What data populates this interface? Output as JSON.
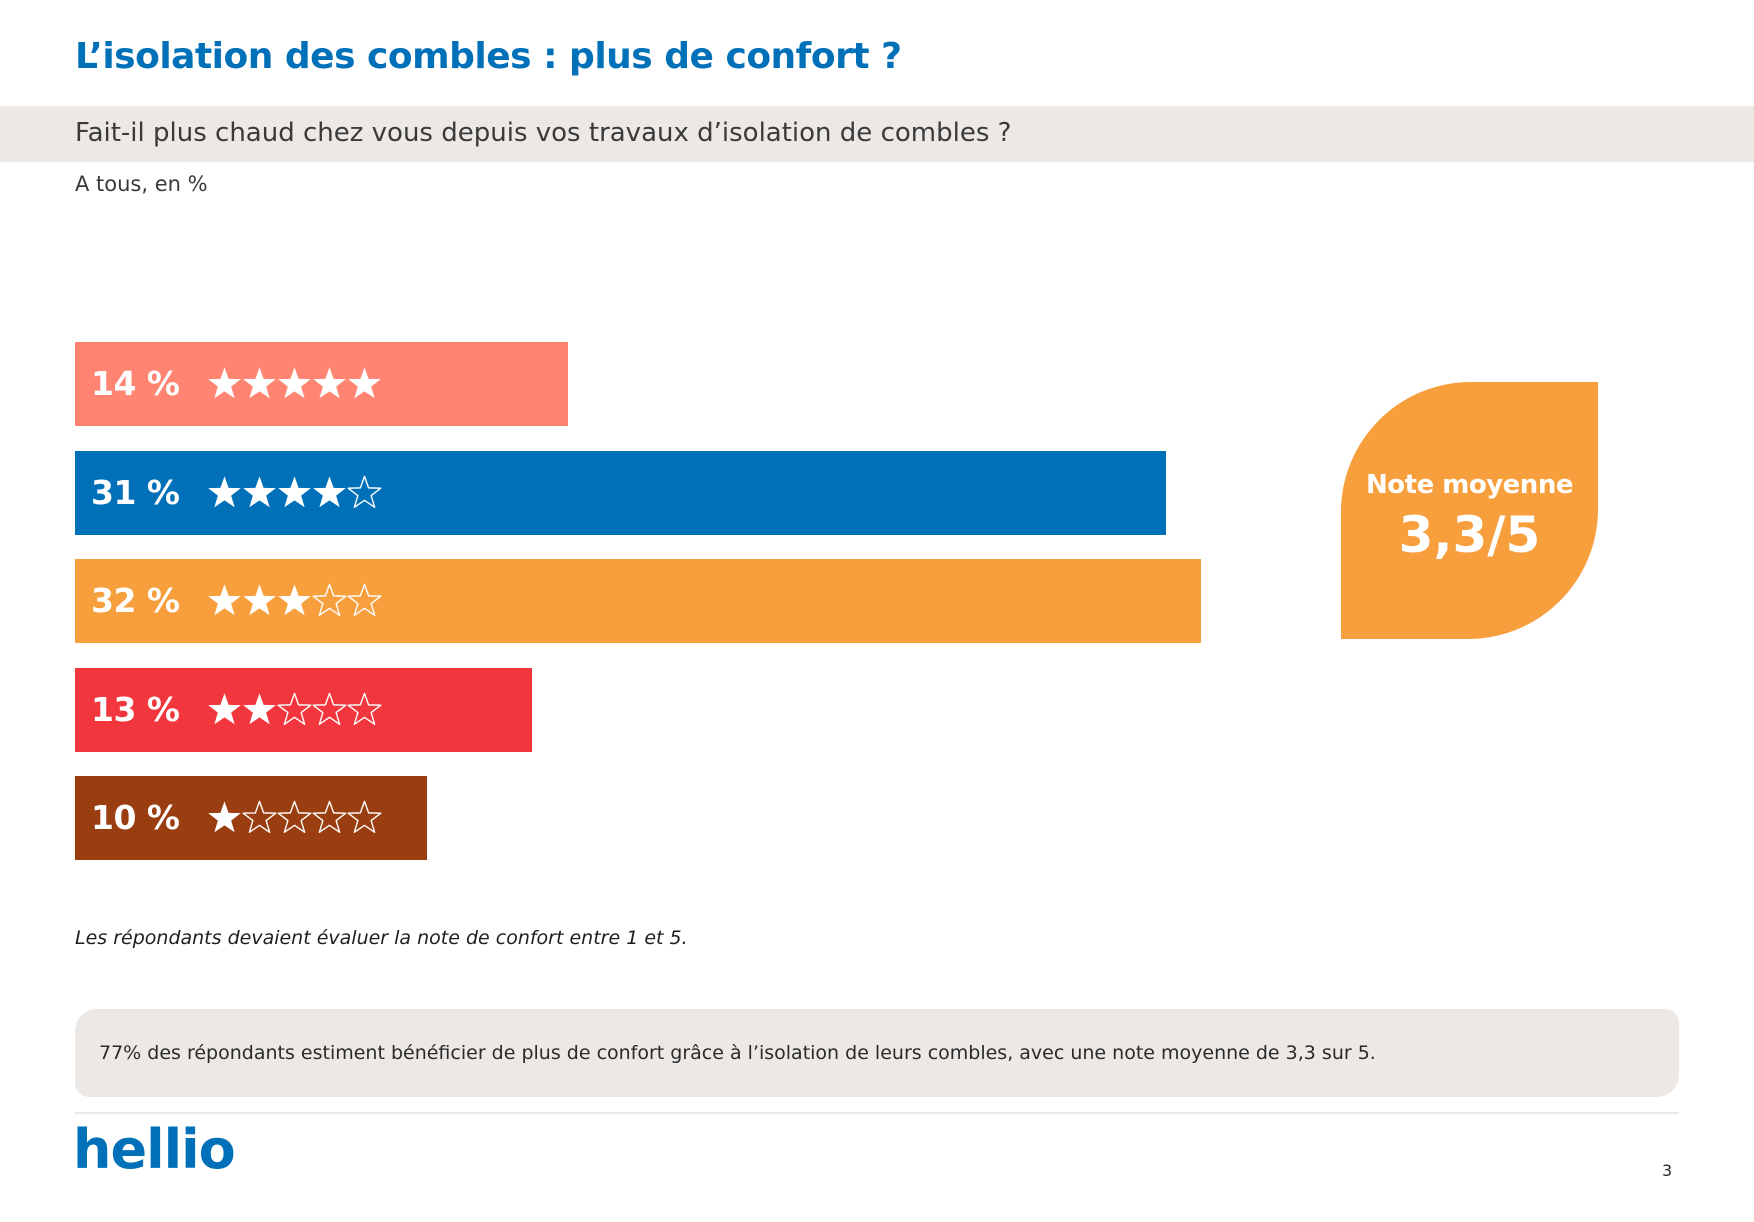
{
  "title": "L’isolation des combles : plus de confort ?",
  "question": "Fait-il plus chaud chez vous depuis vos travaux d’isolation de combles ?",
  "base": "A tous, en %",
  "chart_data": {
    "type": "bar",
    "orientation": "horizontal",
    "categories": [
      "5 étoiles",
      "4 étoiles",
      "3 étoiles",
      "2 étoiles",
      "1 étoile"
    ],
    "stars": [
      5,
      4,
      3,
      2,
      1
    ],
    "values": [
      14,
      31,
      32,
      13,
      10
    ],
    "labels": [
      "14 %",
      "31 %",
      "32 %",
      "13 %",
      "10 %"
    ],
    "colors": [
      "#ff8472",
      "#0071b8",
      "#f79f3d",
      "#f2363d",
      "#9a3d10"
    ],
    "max_stars": 5,
    "xlim": [
      0,
      32
    ]
  },
  "badge": {
    "label": "Note moyenne",
    "value": "3,3/5"
  },
  "footnote": "Les répondants devaient évaluer la note de confort entre 1 et 5.",
  "summary": "77% des répondants estiment bénéficier de plus de confort grâce à l’isolation de leurs combles, avec une note moyenne de 3,3 sur 5.",
  "logo": "hellio",
  "page_number": "3",
  "colors": {
    "brand_blue": "#0071b8",
    "badge_orange": "#f79f3d",
    "band_gray": "#ece8e5"
  }
}
